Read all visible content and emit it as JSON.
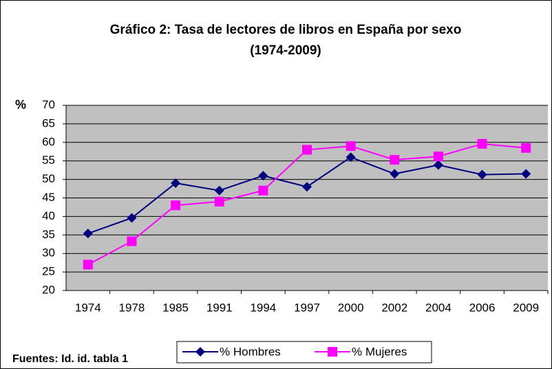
{
  "chart_data": {
    "type": "line",
    "title": [
      "Gráfico 2: Tasa de lectores de libros en España por sexo",
      "(1974-2009)"
    ],
    "y_label": "%",
    "source": "Fuentes: Id. id. tabla 1",
    "categories": [
      "1974",
      "1978",
      "1985",
      "1991",
      "1994",
      "1997",
      "2000",
      "2002",
      "2004",
      "2006",
      "2009"
    ],
    "series": [
      {
        "name": "% Hombres",
        "color": "#000080",
        "marker": "diamond",
        "values": [
          35.4,
          39.6,
          49,
          47,
          51,
          48,
          56,
          51.5,
          53.9,
          51.3,
          51.5
        ]
      },
      {
        "name": "% Mujeres",
        "color": "#ff00ff",
        "marker": "square",
        "values": [
          27,
          33.3,
          43,
          44,
          47,
          58,
          59,
          55.3,
          56.2,
          59.6,
          58.5
        ]
      }
    ],
    "ylim": [
      20,
      70
    ],
    "yticks": [
      20,
      25,
      30,
      35,
      40,
      45,
      50,
      55,
      60,
      65,
      70
    ],
    "grid": true,
    "plot_background": "#c0c0c0"
  }
}
